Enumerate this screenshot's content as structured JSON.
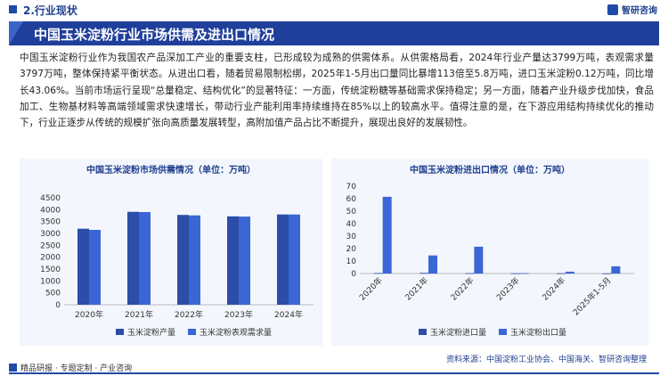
{
  "header": {
    "section_label": "2.行业现状",
    "brand": "智研咨询",
    "title": "中国玉米淀粉行业市场供需及进出口情况"
  },
  "body_text": "中国玉米淀粉行业作为我国农产品深加工产业的重要支柱，已形成较为成熟的供需体系。从供需格局看，2024年行业产量达3799万吨，表观需求量3797万吨，整体保持紧平衡状态。从进出口看，随着贸易限制松绑，2025年1-5月出口量同比暴增113倍至5.8万吨，进口玉米淀粉0.12万吨，同比增长43.06%。当前市场运行呈现“总量稳定、结构优化”的显著特征：一方面，传统淀粉糖等基础需求保持稳定；另一方面，随着产业升级步伐加快，食品加工、生物基材料等高端领域需求快速增长，带动行业产能利用率持续维持在85%以上的较高水平。值得注意的是，在下游应用结构持续优化的推动下，行业正逐步从传统的规模扩张向高质量发展转型，高附加值产品占比不断提升，展现出良好的发展韧性。",
  "footer": {
    "left": "精品研报 · 专题定制 · 产业咨询",
    "source": "资料来源：中国淀粉工业协会、中国海关、智研咨询整理"
  },
  "colors": {
    "primary_dark": "#1f3f9a",
    "series_a": "#2c4ea8",
    "series_b": "#3a66d6",
    "panel_bg": "#f3f6fc"
  },
  "chart_data": [
    {
      "type": "bar",
      "title": "中国玉米淀粉市场供需情况（单位：万吨）",
      "categories": [
        "2020年",
        "2021年",
        "2022年",
        "2023年",
        "2024年"
      ],
      "yticks": [
        0,
        500,
        1000,
        1500,
        2000,
        2500,
        3000,
        3500,
        4000,
        4500
      ],
      "ylim": [
        0,
        4500
      ],
      "series": [
        {
          "name": "玉米淀粉产量",
          "values": [
            3200,
            3910,
            3780,
            3720,
            3799
          ]
        },
        {
          "name": "玉米淀粉表观需求量",
          "values": [
            3150,
            3900,
            3760,
            3710,
            3797
          ]
        }
      ],
      "legend": "bottom"
    },
    {
      "type": "bar",
      "title": "中国玉米淀粉进出口情况（单位：万吨）",
      "categories": [
        "2020年",
        "2021年",
        "2022年",
        "2023年",
        "2024年",
        "2025年1-5月"
      ],
      "yticks": [
        0,
        10,
        20,
        30,
        40,
        50,
        60,
        70
      ],
      "ylim": [
        0,
        70
      ],
      "series": [
        {
          "name": "玉米淀粉进口量",
          "values": [
            0.4,
            0.5,
            0.3,
            0.2,
            0.2,
            0.12
          ]
        },
        {
          "name": "玉米淀粉出口量",
          "values": [
            61.5,
            14.5,
            21.5,
            0.3,
            1.5,
            5.8
          ]
        }
      ],
      "legend": "bottom"
    }
  ]
}
